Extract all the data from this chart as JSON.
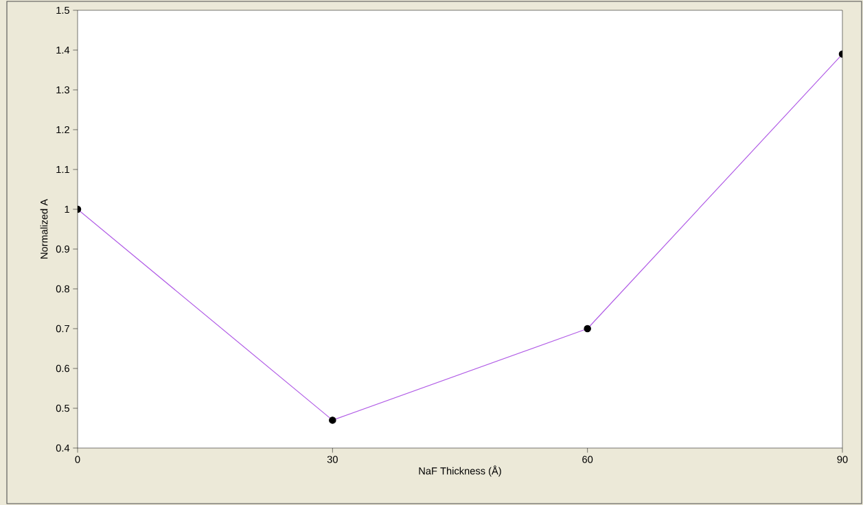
{
  "chart_data": {
    "type": "line",
    "xlabel": "NaF Thickness (Å)",
    "ylabel": "Normalized A",
    "x": [
      0,
      30,
      60,
      90
    ],
    "series": [
      {
        "color": "#b15ce6",
        "values": [
          1.0,
          0.47,
          0.7,
          1.39
        ]
      }
    ],
    "xlim": [
      0,
      90
    ],
    "ylim": [
      0.4,
      1.5
    ],
    "xticks": [
      0,
      30,
      60,
      90
    ],
    "yticks": [
      0.4,
      0.5,
      0.6,
      0.7,
      0.8,
      0.9,
      1,
      1.1,
      1.2,
      1.3,
      1.4,
      1.5
    ],
    "marker": "circle",
    "line_style": "solid"
  }
}
